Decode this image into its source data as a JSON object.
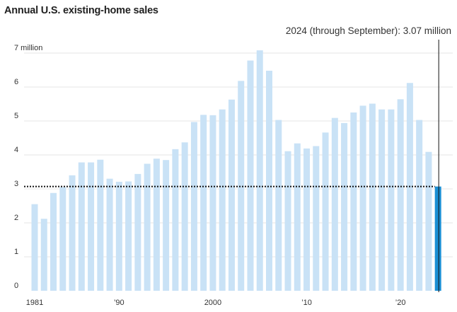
{
  "chart_data": {
    "type": "bar",
    "title": "Annual U.S. existing-home sales",
    "xlabel": "",
    "ylabel": "",
    "unit_label": "million",
    "ylim": [
      0,
      7
    ],
    "yticks": [
      0,
      1,
      2,
      3,
      4,
      5,
      6,
      7
    ],
    "ytick_labels": [
      "0",
      "1",
      "2",
      "3",
      "4",
      "5",
      "6",
      "7 million"
    ],
    "xtick_labels": [
      {
        "year": 1981,
        "label": "1981"
      },
      {
        "year": 1990,
        "label": "’90"
      },
      {
        "year": 2000,
        "label": "2000"
      },
      {
        "year": 2010,
        "label": "’10"
      },
      {
        "year": 2020,
        "label": "’20"
      }
    ],
    "grid": true,
    "colors": {
      "bar": "#c9e2f6",
      "highlight": "#1a8ed3",
      "grid": "#e6e6e6",
      "reference_line": "#111111"
    },
    "categories": [
      1981,
      1982,
      1983,
      1984,
      1985,
      1986,
      1987,
      1988,
      1989,
      1990,
      1991,
      1992,
      1993,
      1994,
      1995,
      1996,
      1997,
      1998,
      1999,
      2000,
      2001,
      2002,
      2003,
      2004,
      2005,
      2006,
      2007,
      2008,
      2009,
      2010,
      2011,
      2012,
      2013,
      2014,
      2015,
      2016,
      2017,
      2018,
      2019,
      2020,
      2021,
      2022,
      2023,
      2024
    ],
    "values": [
      2.55,
      2.12,
      2.88,
      3.05,
      3.4,
      3.78,
      3.78,
      3.86,
      3.3,
      3.21,
      3.22,
      3.44,
      3.74,
      3.89,
      3.85,
      4.17,
      4.37,
      4.97,
      5.18,
      5.17,
      5.34,
      5.63,
      6.18,
      6.78,
      7.08,
      6.48,
      5.03,
      4.11,
      4.34,
      4.19,
      4.26,
      4.66,
      5.09,
      4.94,
      5.25,
      5.45,
      5.51,
      5.34,
      5.34,
      5.64,
      6.12,
      5.03,
      4.09,
      3.07
    ],
    "highlight": {
      "year": 2024,
      "value": 3.07,
      "label": "2024 (through September): 3.07 million"
    }
  }
}
